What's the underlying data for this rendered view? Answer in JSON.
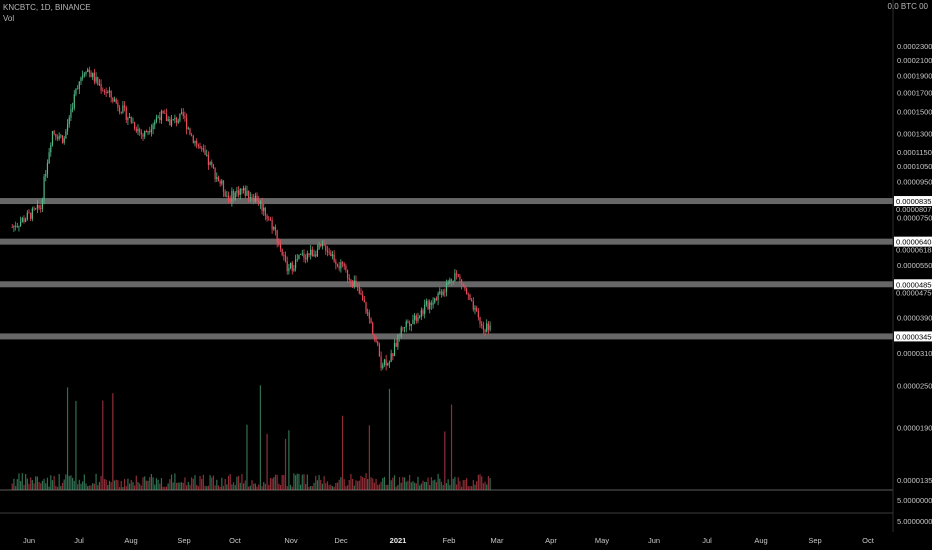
{
  "symbol_line": "KNCBTC, 1D, BINANCE",
  "volume_label": "Vol",
  "currency_label": "0.0 BTC 00",
  "colors": {
    "up": "#53b987",
    "down": "#eb4d5c",
    "level_band": "#8a8a8a",
    "background": "#000000"
  },
  "chart_data": {
    "type": "candlestick",
    "timeframe": "1D",
    "x_ticks": [
      "Jun",
      "Jul",
      "Aug",
      "Sep",
      "Oct",
      "Nov",
      "Dec",
      "2021",
      "Feb",
      "Mar",
      "Apr",
      "May",
      "Jun",
      "Jul",
      "Aug",
      "Sep",
      "Oct"
    ],
    "y_ticks": [
      "0.00023000",
      "0.00021000",
      "0.00019000",
      "0.00017000",
      "0.00015000",
      "0.00013000",
      "0.00011500",
      "0.00010500",
      "0.00009500",
      "0.00007500",
      "0.00005500",
      "0.00003900",
      "0.00003100",
      "0.00002500",
      "0.00001900",
      "0.00001350"
    ],
    "volume_axis_ticks": [
      "5.00000000",
      "5.00000000"
    ],
    "horizontal_levels": [
      {
        "price_label": "0.00008355",
        "value": 8.355e-05,
        "secondary_label": "0.00008075"
      },
      {
        "price_label": "0.00006408",
        "value": 6.408e-05,
        "secondary_label": "0.00006184"
      },
      {
        "price_label": "0.00004850",
        "value": 4.85e-05,
        "secondary_label": "0.00004750"
      },
      {
        "price_label": "0.00003450",
        "value": 3.45e-05,
        "secondary_label": ""
      }
    ],
    "close_series": [
      [
        "2020-05-22",
        7.05e-05
      ],
      [
        "2020-06-01",
        7.6e-05
      ],
      [
        "2020-06-08",
        8e-05
      ],
      [
        "2020-06-15",
        0.000132
      ],
      [
        "2020-06-22",
        0.000125
      ],
      [
        "2020-07-01",
        0.000185
      ],
      [
        "2020-07-05",
        0.0002
      ],
      [
        "2020-07-12",
        0.00018
      ],
      [
        "2020-07-20",
        0.000165
      ],
      [
        "2020-07-30",
        0.000145
      ],
      [
        "2020-08-08",
        0.000128
      ],
      [
        "2020-08-18",
        0.000147
      ],
      [
        "2020-08-25",
        0.00014
      ],
      [
        "2020-09-01",
        0.000145
      ],
      [
        "2020-09-06",
        0.000128
      ],
      [
        "2020-09-12",
        0.000115
      ],
      [
        "2020-09-20",
        0.0001
      ],
      [
        "2020-09-28",
        8.5e-05
      ],
      [
        "2020-10-05",
        9e-05
      ],
      [
        "2020-10-15",
        8.5e-05
      ],
      [
        "2020-10-25",
        7e-05
      ],
      [
        "2020-11-02",
        5.3e-05
      ],
      [
        "2020-11-10",
        5.8e-05
      ],
      [
        "2020-11-18",
        6e-05
      ],
      [
        "2020-11-25",
        6.2e-05
      ],
      [
        "2020-12-03",
        5.5e-05
      ],
      [
        "2020-12-12",
        4.9e-05
      ],
      [
        "2020-12-20",
        4e-05
      ],
      [
        "2020-12-28",
        2.9e-05
      ],
      [
        "2021-01-03",
        3e-05
      ],
      [
        "2021-01-10",
        3.7e-05
      ],
      [
        "2021-01-20",
        4e-05
      ],
      [
        "2021-01-28",
        4.4e-05
      ],
      [
        "2021-02-05",
        4.8e-05
      ],
      [
        "2021-02-10",
        5.2e-05
      ],
      [
        "2021-02-14",
        4.9e-05
      ],
      [
        "2021-02-20",
        4.2e-05
      ],
      [
        "2021-02-27",
        3.6e-05
      ],
      [
        "2021-03-04",
        3.8e-05
      ]
    ]
  }
}
